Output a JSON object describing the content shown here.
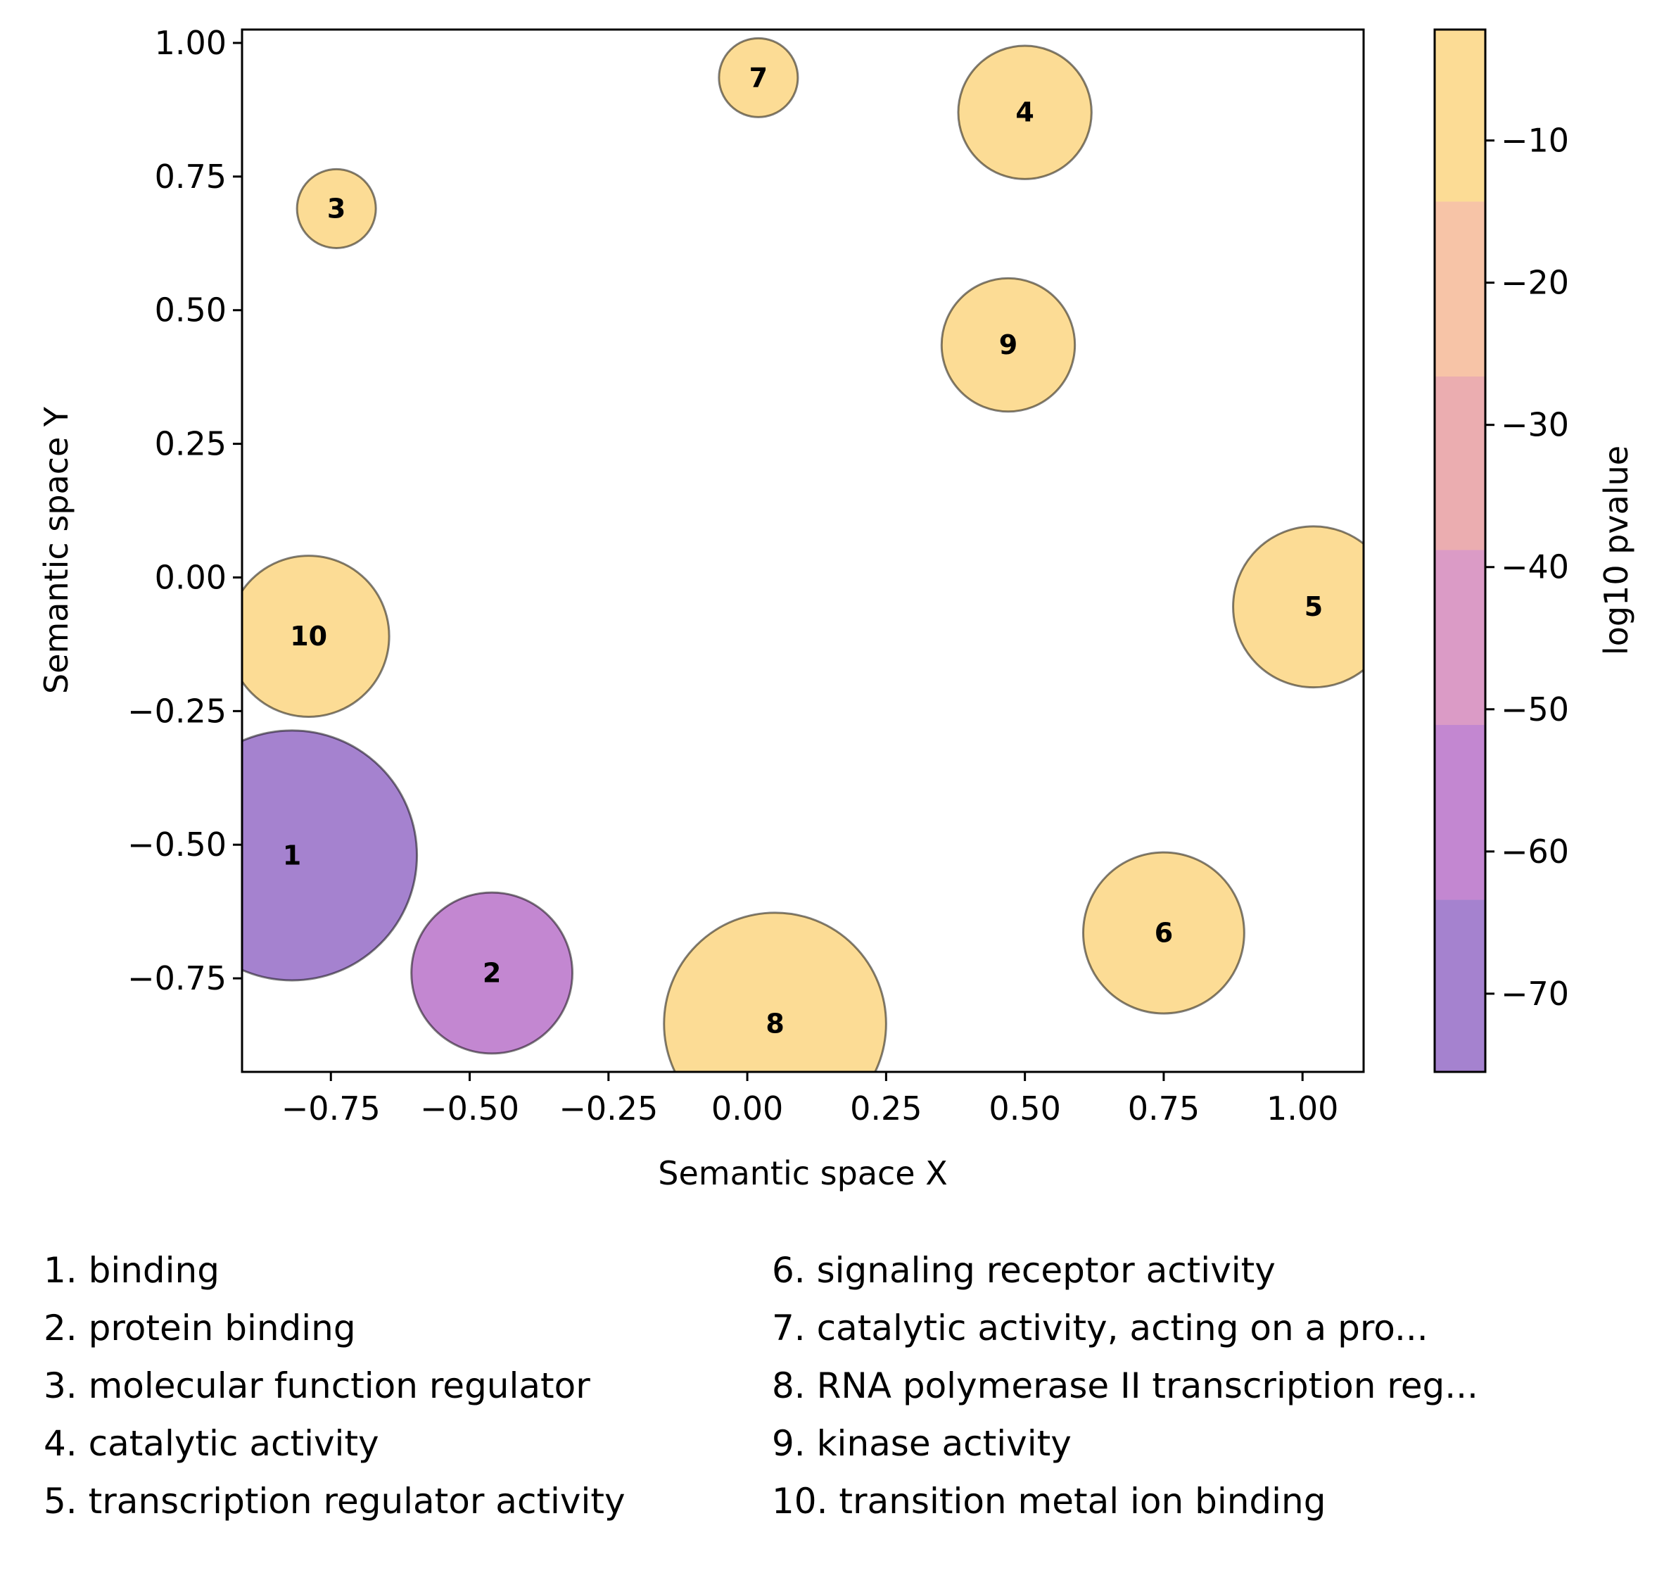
{
  "chart_data": {
    "type": "scatter",
    "xlabel": "Semantic space X",
    "ylabel": "Semantic space Y",
    "xlim": [
      -0.91,
      1.11
    ],
    "ylim": [
      -0.925,
      1.025
    ],
    "x_ticks": [
      -0.75,
      -0.5,
      -0.25,
      0.0,
      0.25,
      0.5,
      0.75,
      1.0
    ],
    "x_tick_labels": [
      "−0.75",
      "−0.50",
      "−0.25",
      "0.00",
      "0.25",
      "0.50",
      "0.75",
      "1.00"
    ],
    "y_ticks": [
      1.0,
      0.75,
      0.5,
      0.25,
      0.0,
      -0.25,
      -0.5,
      -0.75
    ],
    "y_tick_labels": [
      "1.00",
      "0.75",
      "0.50",
      "0.25",
      "0.00",
      "−0.25",
      "−0.50",
      "−0.75"
    ],
    "grid": false,
    "colorbar": {
      "label": "log10 pvalue",
      "range": [
        -75.5,
        -2.2
      ],
      "bands": [
        {
          "from": -75.5,
          "to": -63.4,
          "color": "#a582cf"
        },
        {
          "from": -63.4,
          "to": -51.1,
          "color": "#c387d1"
        },
        {
          "from": -51.1,
          "to": -38.8,
          "color": "#db9bc6"
        },
        {
          "from": -38.8,
          "to": -26.6,
          "color": "#ebadb0"
        },
        {
          "from": -26.6,
          "to": -14.3,
          "color": "#f7c4a7"
        },
        {
          "from": -14.3,
          "to": -2.2,
          "color": "#fcdc95"
        }
      ],
      "ticks": [
        -10,
        -20,
        -30,
        -40,
        -50,
        -60,
        -70
      ],
      "tick_labels": [
        "−10",
        "−20",
        "−30",
        "−40",
        "−50",
        "−60",
        "−70"
      ]
    },
    "points": [
      {
        "id": "1",
        "x": -0.82,
        "y": -0.52,
        "radius": 0.225,
        "log10_pvalue": -74,
        "color": "#a582cf"
      },
      {
        "id": "2",
        "x": -0.46,
        "y": -0.74,
        "radius": 0.145,
        "log10_pvalue": -57,
        "color": "#c387d1"
      },
      {
        "id": "3",
        "x": -0.74,
        "y": 0.69,
        "radius": 0.071,
        "log10_pvalue": -5,
        "color": "#fcdc95"
      },
      {
        "id": "4",
        "x": 0.5,
        "y": 0.87,
        "radius": 0.12,
        "log10_pvalue": -5,
        "color": "#fcdc95"
      },
      {
        "id": "5",
        "x": 1.02,
        "y": -0.055,
        "radius": 0.145,
        "log10_pvalue": -5,
        "color": "#fcdc95"
      },
      {
        "id": "6",
        "x": 0.75,
        "y": -0.665,
        "radius": 0.145,
        "log10_pvalue": -5,
        "color": "#fcdc95"
      },
      {
        "id": "7",
        "x": 0.02,
        "y": 0.935,
        "radius": 0.071,
        "log10_pvalue": -5,
        "color": "#fcdc95"
      },
      {
        "id": "8",
        "x": 0.05,
        "y": -0.835,
        "radius": 0.2,
        "log10_pvalue": -5,
        "color": "#fcdc95"
      },
      {
        "id": "9",
        "x": 0.47,
        "y": 0.435,
        "radius": 0.12,
        "log10_pvalue": -5,
        "color": "#fcdc95"
      },
      {
        "id": "10",
        "x": -0.79,
        "y": -0.11,
        "radius": 0.145,
        "log10_pvalue": -5,
        "color": "#fcdc95"
      }
    ],
    "legend": [
      "1. binding",
      "2. protein binding",
      "3. molecular function regulator",
      "4. catalytic activity",
      "5. transcription regulator activity",
      "6. signaling receptor activity",
      "7. catalytic activity, acting on a pro...",
      "8. RNA polymerase II transcription reg...",
      "9. kinase activity",
      "10. transition metal ion binding"
    ]
  }
}
